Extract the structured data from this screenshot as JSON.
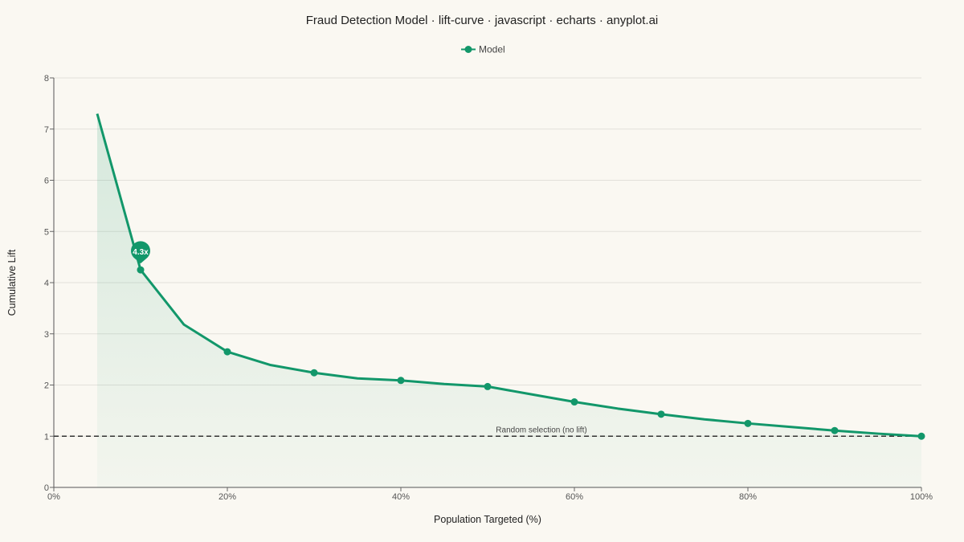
{
  "chart_data": {
    "type": "line",
    "title": "Fraud Detection Model · lift-curve · javascript · echarts · anyplot.ai",
    "xlabel": "Population Targeted (%)",
    "ylabel": "Cumulative Lift",
    "xlim": [
      0,
      100
    ],
    "ylim": [
      0,
      8
    ],
    "x_ticks": [
      0,
      20,
      40,
      60,
      80,
      100
    ],
    "x_tick_labels": [
      "0%",
      "20%",
      "40%",
      "60%",
      "80%",
      "100%"
    ],
    "y_ticks": [
      0,
      1,
      2,
      3,
      4,
      5,
      6,
      7,
      8
    ],
    "y_tick_labels": [
      "0",
      "1",
      "2",
      "3",
      "4",
      "5",
      "6",
      "7",
      "8"
    ],
    "grid": true,
    "legend_position": "top-center",
    "series": [
      {
        "name": "Model",
        "color": "#12976a",
        "x": [
          5,
          10,
          15,
          20,
          25,
          30,
          35,
          40,
          45,
          50,
          55,
          60,
          65,
          70,
          75,
          80,
          85,
          90,
          95,
          100
        ],
        "y": [
          7.3,
          4.25,
          3.18,
          2.65,
          2.39,
          2.24,
          2.13,
          2.09,
          2.02,
          1.97,
          1.82,
          1.67,
          1.54,
          1.43,
          1.33,
          1.25,
          1.18,
          1.11,
          1.05,
          1.0
        ],
        "marker_x": [
          10,
          20,
          30,
          40,
          50,
          60,
          70,
          80,
          90,
          100
        ]
      }
    ],
    "baseline": {
      "y": 1,
      "label": "Random selection (no lift)"
    },
    "annotations": [
      {
        "x": 10,
        "y": 4.25,
        "label": "4.3x"
      }
    ]
  }
}
